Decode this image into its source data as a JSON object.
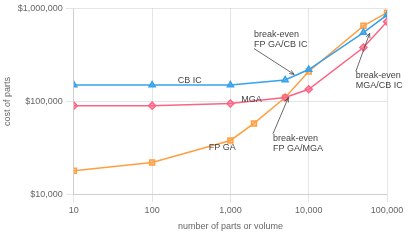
{
  "chart_data": {
    "type": "line",
    "xlabel": "number of parts or volume",
    "ylabel": "cost of parts",
    "log": true,
    "grid": true,
    "legend": "none",
    "xlim": [
      10,
      100000
    ],
    "ylim": [
      10000,
      1000000
    ],
    "xticks": [
      10,
      100,
      {
        "value": 1000,
        "label": "1,000"
      },
      {
        "value": 10000,
        "label": "10,000"
      },
      {
        "value": 100000,
        "label": "100,000"
      }
    ],
    "yticks": [
      {
        "value": 10000,
        "label": "$10,000"
      },
      {
        "value": 100000,
        "label": "$100,000"
      },
      {
        "value": 1000000,
        "label": "$1,000,000"
      }
    ],
    "series": [
      {
        "name": "CB IC",
        "marker": "triangle",
        "x": [
          10,
          100,
          1000,
          5000,
          10000,
          50000,
          100000
        ],
        "values": [
          150000,
          150000,
          150000,
          170000,
          220000,
          550000,
          850000
        ]
      },
      {
        "name": "MGA",
        "marker": "diamond",
        "x": [
          10,
          100,
          1000,
          5000,
          10000,
          50000,
          100000
        ],
        "values": [
          90000,
          90000,
          95000,
          110000,
          135000,
          380000,
          720000
        ]
      },
      {
        "name": "FP GA",
        "marker": "square",
        "x": [
          10,
          100,
          1000,
          2000,
          5000,
          10000,
          50000,
          100000
        ],
        "values": [
          18000,
          22000,
          38000,
          58000,
          110000,
          210000,
          650000,
          900000
        ]
      }
    ],
    "annotations": [
      {
        "text": "CB IC",
        "x": 200,
        "y": 168000
      },
      {
        "text": "MGA",
        "x": 1300,
        "y": 105000
      },
      {
        "text": "FP GA",
        "x": 500,
        "y": 32000
      },
      {
        "text": "break-even\nFP GA/CB IC",
        "x": 2000,
        "y": 370000,
        "arrow_x": 6500,
        "arrow_y": 195000
      },
      {
        "text": "break-even\nFP GA/MGA",
        "x": 3500,
        "y": 45000,
        "arrow_x": 5500,
        "arrow_y": 110000
      },
      {
        "text": "break-even\nMGA/CB IC",
        "x": 40000,
        "y": 210000,
        "arrow_x": 60000,
        "arrow_y": 540000
      }
    ]
  }
}
